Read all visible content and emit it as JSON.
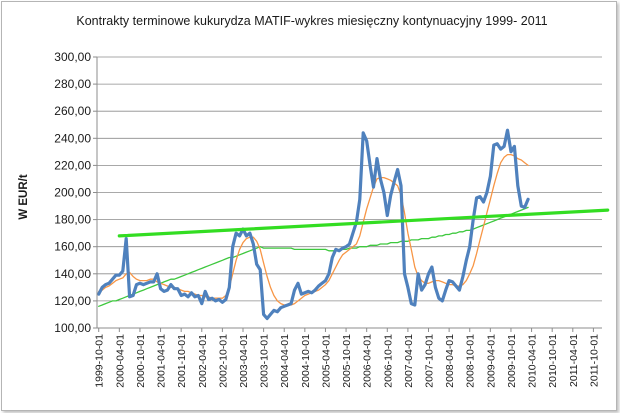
{
  "chart_data": {
    "type": "line",
    "title": "Kontrakty terminowe  kukurydza MATIF-wykres miesięczny kontynuacyjny 1999- 2011",
    "xlabel": "",
    "ylabel": "W EUR/t",
    "ylim": [
      100,
      300
    ],
    "y_ticks": [
      "100,00",
      "120,00",
      "140,00",
      "160,00",
      "180,00",
      "200,00",
      "220,00",
      "240,00",
      "260,00",
      "280,00",
      "300,00"
    ],
    "x_tick_labels": [
      "1999-10-01",
      "2000-04-01",
      "2000-10-01",
      "2001-04-01",
      "2001-10-01",
      "2002-04-01",
      "2002-10-01",
      "2003-04-01",
      "2003-10-01",
      "2004-04-01",
      "2004-10-01",
      "2005-04-01",
      "2005-10-01",
      "2006-04-01",
      "2006-10-01",
      "2007-04-01",
      "2007-10-01",
      "2008-04-01",
      "2008-10-01",
      "2009-04-01",
      "2009-10-01",
      "2010-04-01",
      "2010-10-01",
      "2011-04-01",
      "2011-10-01"
    ],
    "grid": true,
    "legend": "none",
    "series": [
      {
        "color": "#4f81bd",
        "start": "1999-10",
        "values": [
          125,
          130,
          132,
          133,
          136,
          139,
          139,
          142,
          166,
          123,
          124,
          132,
          133,
          132,
          133,
          134,
          134,
          140,
          129,
          127,
          128,
          132,
          129,
          129,
          124,
          125,
          123,
          126,
          123,
          124,
          118,
          127,
          121,
          122,
          120,
          121,
          119,
          121,
          130,
          160,
          170,
          168,
          173,
          168,
          170,
          162,
          147,
          143,
          110,
          107,
          110,
          113,
          112,
          115,
          116,
          117,
          118,
          128,
          133,
          125,
          126,
          127,
          126,
          128,
          131,
          133,
          135,
          140,
          152,
          158,
          157,
          159,
          160,
          162,
          170,
          178,
          195,
          244,
          238,
          220,
          204,
          225,
          210,
          200,
          183,
          198,
          208,
          217,
          205,
          140,
          130,
          118,
          117,
          140,
          128,
          132,
          140,
          145,
          130,
          122,
          120,
          128,
          135,
          134,
          131,
          128,
          138,
          150,
          160,
          180,
          196,
          197,
          193,
          200,
          212,
          235,
          236,
          232,
          234,
          246,
          230,
          234,
          205,
          190,
          189,
          195
        ]
      },
      {
        "color": "#f79646",
        "start": "1999-10",
        "values": [
          127,
          128,
          130,
          131,
          133,
          135,
          136,
          137,
          140,
          141,
          138,
          136,
          135,
          135,
          135,
          136,
          136,
          134,
          133,
          132,
          131,
          130,
          130,
          129,
          128,
          127,
          127,
          126,
          125,
          124,
          124,
          123,
          123,
          122,
          122,
          122,
          122,
          124,
          130,
          140,
          150,
          158,
          163,
          166,
          167,
          167,
          164,
          158,
          148,
          138,
          130,
          124,
          120,
          118,
          117,
          117,
          117,
          118,
          120,
          122,
          124,
          125,
          126,
          127,
          128,
          130,
          132,
          135,
          140,
          145,
          150,
          154,
          156,
          158,
          160,
          162,
          168,
          178,
          188,
          196,
          204,
          210,
          211,
          211,
          210,
          209,
          207,
          205,
          198,
          185,
          170,
          158,
          145,
          138,
          135,
          133,
          133,
          134,
          135,
          135,
          134,
          133,
          132,
          132,
          131,
          131,
          132,
          135,
          140,
          146,
          155,
          165,
          175,
          185,
          195,
          205,
          214,
          222,
          226,
          228,
          228,
          227,
          225,
          224,
          222,
          220
        ]
      },
      {
        "color": "#3ec83e",
        "start": "1999-10",
        "values": [
          116,
          117,
          118,
          119,
          120,
          120,
          121,
          122,
          123,
          124,
          125,
          126,
          127,
          128,
          129,
          130,
          131,
          132,
          133,
          134,
          135,
          136,
          136,
          137,
          138,
          139,
          140,
          141,
          142,
          143,
          144,
          145,
          146,
          147,
          148,
          149,
          150,
          151,
          152,
          152,
          153,
          154,
          155,
          156,
          157,
          158,
          159,
          160,
          159,
          159,
          159,
          159,
          159,
          159,
          159,
          159,
          159,
          158,
          158,
          158,
          158,
          158,
          158,
          158,
          158,
          158,
          158,
          157,
          157,
          157,
          158,
          158,
          158,
          159,
          159,
          159,
          160,
          160,
          160,
          161,
          161,
          161,
          162,
          162,
          162,
          163,
          163,
          163,
          164,
          164,
          164,
          165,
          165,
          165,
          166,
          166,
          166,
          167,
          167,
          168,
          168,
          169,
          169,
          170,
          170,
          171,
          171,
          172,
          172,
          173,
          174,
          175,
          176,
          177,
          178,
          179,
          180,
          181,
          182,
          183,
          184,
          185,
          186,
          187,
          188,
          189
        ]
      },
      {
        "color": "#33dd22",
        "start": "2000-04",
        "end": "2012-01",
        "values": [
          168,
          187
        ]
      }
    ]
  }
}
